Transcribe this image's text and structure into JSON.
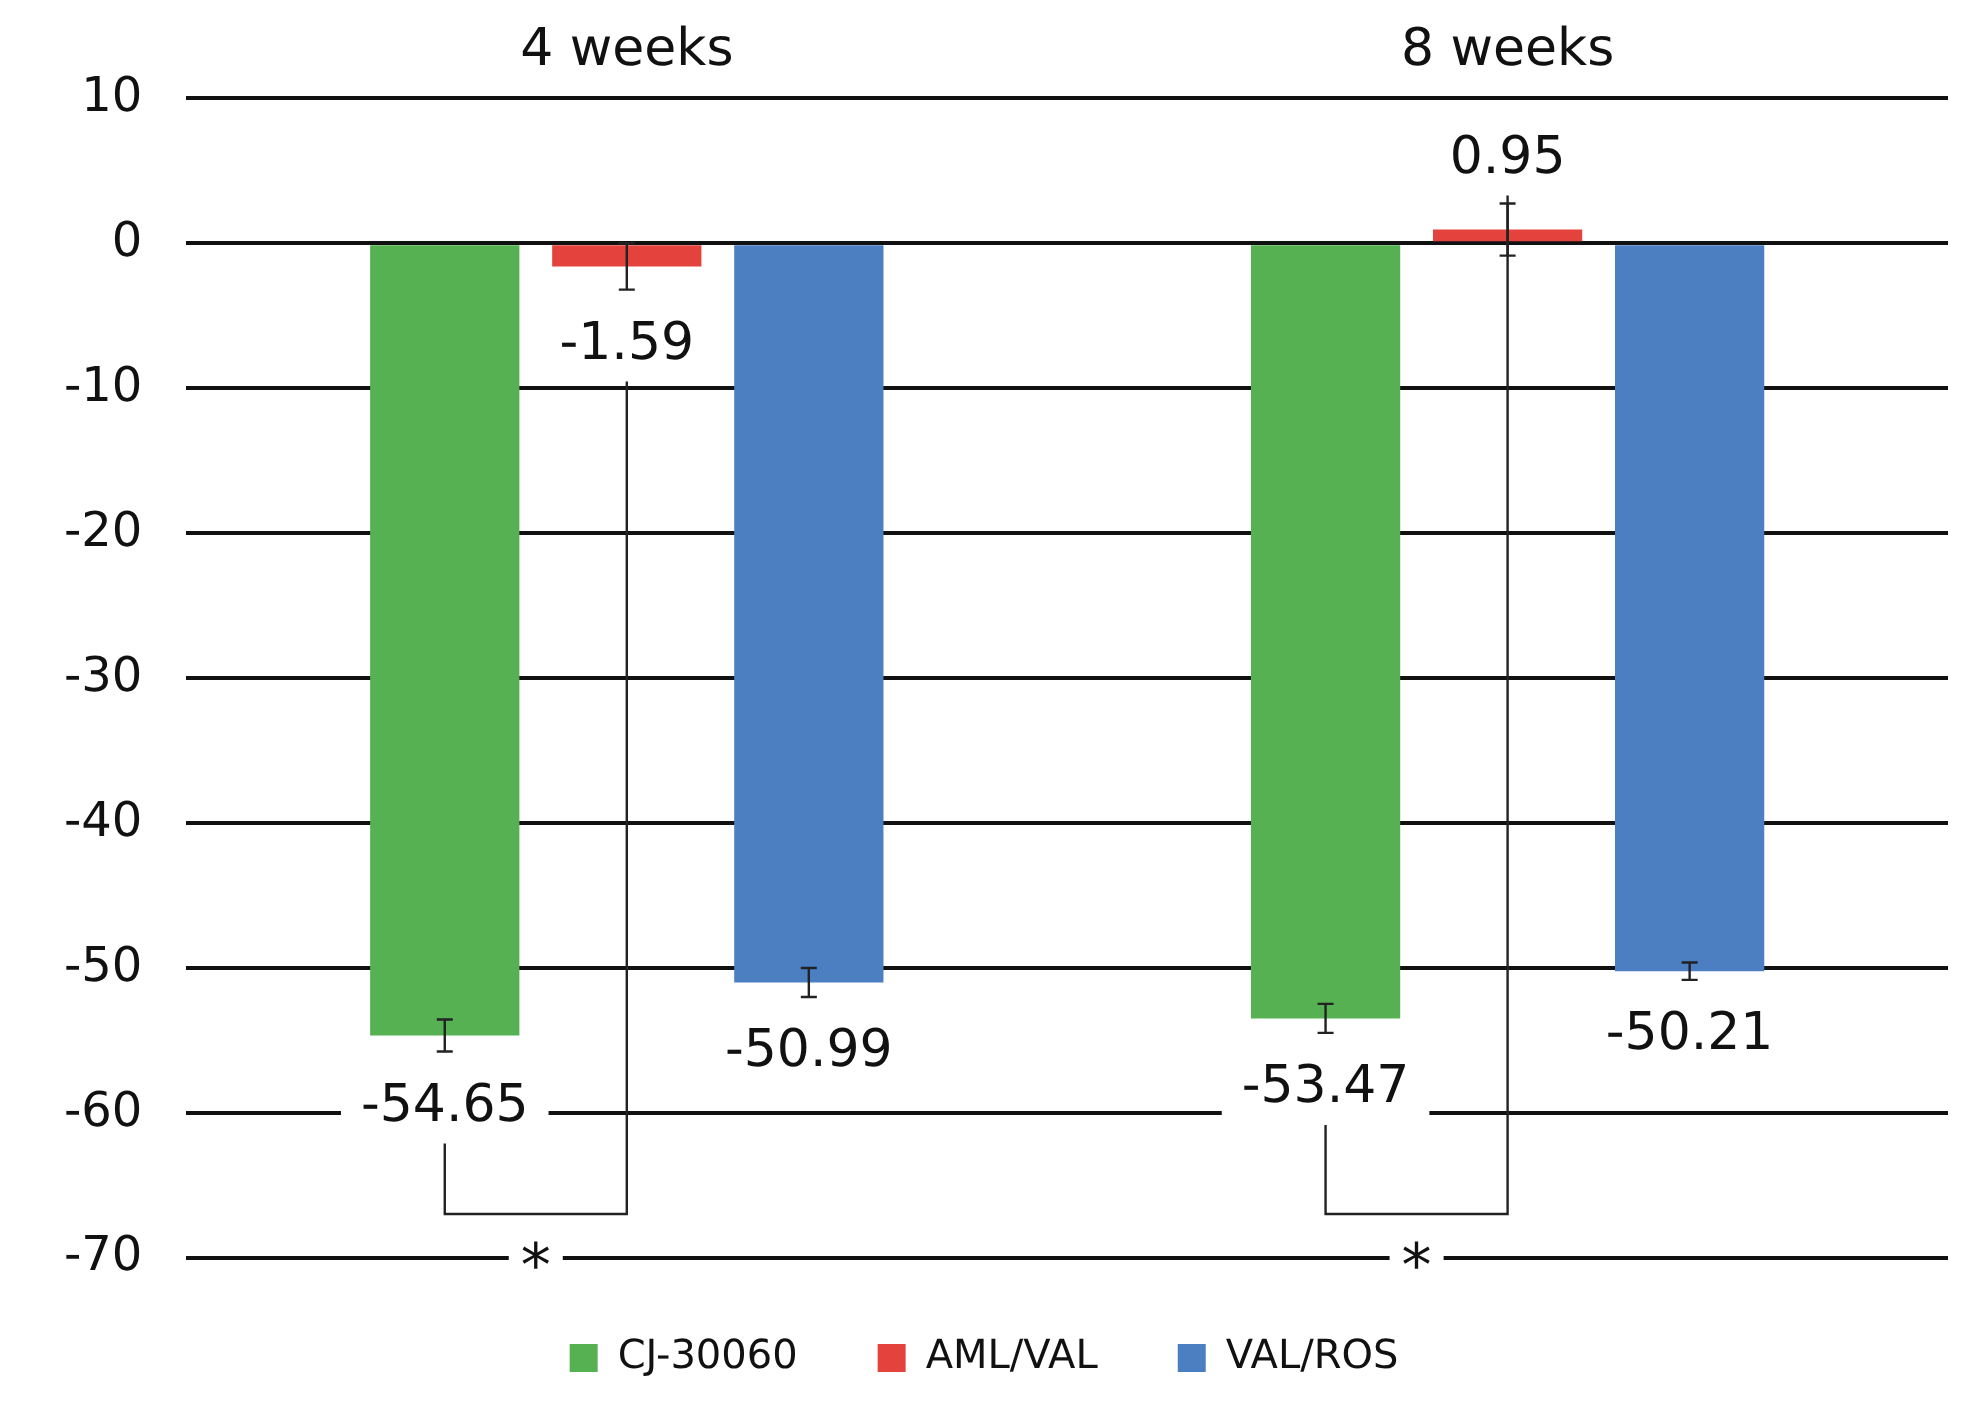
{
  "chart_data": {
    "type": "bar",
    "categories": [
      "4 weeks",
      "8 weeks"
    ],
    "series": [
      {
        "name": "CJ-30060",
        "color": "#55b152",
        "values": [
          -54.65,
          -53.47
        ],
        "errors": [
          1.1,
          1.0
        ]
      },
      {
        "name": "AML/VAL",
        "color": "#e4433d",
        "values": [
          -1.59,
          0.95
        ],
        "errors": [
          1.6,
          1.8
        ]
      },
      {
        "name": "VAL/ROS",
        "color": "#4b7fc2",
        "values": [
          -50.99,
          -50.21
        ],
        "errors": [
          1.0,
          0.6
        ]
      }
    ],
    "ylim": [
      -70,
      10
    ],
    "yticks": [
      10,
      0,
      -10,
      -20,
      -30,
      -40,
      -50,
      -60,
      -70
    ],
    "grid": "y",
    "legend": "bottom",
    "data_labels": true,
    "annotations": [
      "*",
      "*"
    ]
  }
}
